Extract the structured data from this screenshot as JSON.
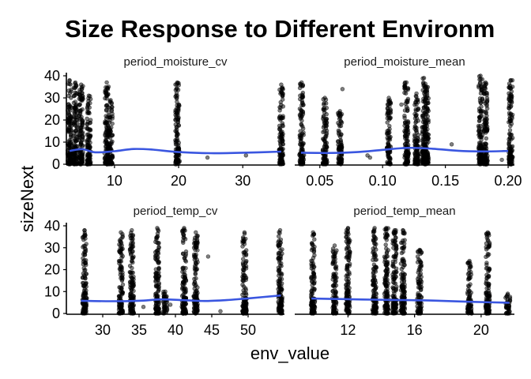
{
  "chart_data": {
    "type": "scatter",
    "title": "Size Response to Different Environm",
    "xlabel": "env_value",
    "ylabel": "sizeNext",
    "ylim": [
      0,
      40
    ],
    "yticks": [
      0,
      10,
      20,
      30,
      40
    ],
    "grid": false,
    "smooth_color": "#3355dd",
    "point_color": "#000000",
    "facets": [
      {
        "name": "period_moisture_cv",
        "xlim": [
          2.5,
          36.5
        ],
        "xticks": [
          10,
          20,
          30
        ],
        "columns": [
          {
            "x": 3.0,
            "ymin": 0,
            "ymax": 38
          },
          {
            "x": 3.9,
            "ymin": 0,
            "ymax": 37
          },
          {
            "x": 4.8,
            "ymin": 0,
            "ymax": 36
          },
          {
            "x": 6.0,
            "ymin": 0,
            "ymax": 31
          },
          {
            "x": 8.8,
            "ymin": 0,
            "ymax": 37
          },
          {
            "x": 9.4,
            "ymin": 0,
            "ymax": 29
          },
          {
            "x": 19.8,
            "ymin": 0,
            "ymax": 37
          },
          {
            "x": 36.0,
            "ymin": 0,
            "ymax": 36
          }
        ],
        "scatter": [
          {
            "x": 6.3,
            "y": 1
          },
          {
            "x": 24.5,
            "y": 3
          },
          {
            "x": 30.5,
            "y": 4
          }
        ],
        "smooth": {
          "x": [
            3.0,
            5.0,
            7.0,
            10.0,
            13.0,
            16.0,
            20.0,
            25.0,
            30.0,
            36.0
          ],
          "y": [
            6.0,
            6.8,
            5.4,
            5.9,
            6.9,
            6.6,
            5.5,
            5.0,
            5.2,
            5.7
          ]
        }
      },
      {
        "name": "period_moisture_mean",
        "xlim": [
          0.03,
          0.205
        ],
        "xticks": [
          0.05,
          0.1,
          0.15,
          0.2
        ],
        "columns": [
          {
            "x": 0.0355,
            "ymin": 0,
            "ymax": 37
          },
          {
            "x": 0.054,
            "ymin": 0,
            "ymax": 30
          },
          {
            "x": 0.066,
            "ymin": 0,
            "ymax": 24
          },
          {
            "x": 0.105,
            "ymin": 0,
            "ymax": 30
          },
          {
            "x": 0.119,
            "ymin": 0,
            "ymax": 37
          },
          {
            "x": 0.127,
            "ymin": 0,
            "ymax": 32
          },
          {
            "x": 0.133,
            "ymin": 0,
            "ymax": 39
          },
          {
            "x": 0.135,
            "ymin": 0,
            "ymax": 35
          },
          {
            "x": 0.178,
            "ymin": 0,
            "ymax": 40
          },
          {
            "x": 0.182,
            "ymin": 0,
            "ymax": 37
          },
          {
            "x": 0.202,
            "ymin": 0,
            "ymax": 38
          }
        ],
        "scatter": [
          {
            "x": 0.068,
            "y": 34
          },
          {
            "x": 0.088,
            "y": 4
          },
          {
            "x": 0.09,
            "y": 3
          },
          {
            "x": 0.115,
            "y": 27
          },
          {
            "x": 0.155,
            "y": 9
          },
          {
            "x": 0.195,
            "y": 2
          }
        ],
        "smooth": {
          "x": [
            0.035,
            0.06,
            0.08,
            0.1,
            0.12,
            0.14,
            0.16,
            0.18,
            0.2
          ],
          "y": [
            5.2,
            5.1,
            5.5,
            6.5,
            7.4,
            7.0,
            6.1,
            5.8,
            6.0
          ]
        }
      },
      {
        "name": "period_temp_cv",
        "xlim": [
          25.0,
          55.0
        ],
        "xticks": [
          30,
          35,
          40,
          45,
          50
        ],
        "columns": [
          {
            "x": 27.5,
            "ymin": 0,
            "ymax": 38
          },
          {
            "x": 32.5,
            "ymin": 0,
            "ymax": 37
          },
          {
            "x": 34.0,
            "ymin": 0,
            "ymax": 38
          },
          {
            "x": 37.5,
            "ymin": 0,
            "ymax": 39
          },
          {
            "x": 38.6,
            "ymin": 0,
            "ymax": 10
          },
          {
            "x": 41.2,
            "ymin": 0,
            "ymax": 39
          },
          {
            "x": 42.8,
            "ymin": 0,
            "ymax": 37
          },
          {
            "x": 49.5,
            "ymin": 0,
            "ymax": 37
          },
          {
            "x": 54.4,
            "ymin": 0,
            "ymax": 38
          }
        ],
        "scatter": [
          {
            "x": 35.6,
            "y": 3
          },
          {
            "x": 39.3,
            "y": 4
          },
          {
            "x": 44.5,
            "y": 26
          },
          {
            "x": 46.2,
            "y": 1
          }
        ],
        "smooth": {
          "x": [
            27.0,
            31.0,
            35.0,
            38.0,
            41.0,
            44.0,
            47.0,
            50.0,
            54.5
          ],
          "y": [
            5.8,
            5.6,
            5.8,
            6.4,
            6.1,
            5.7,
            6.1,
            6.9,
            8.2
          ]
        }
      },
      {
        "name": "period_temp_mean",
        "xlim": [
          8.8,
          22.0
        ],
        "xticks": [
          12,
          16,
          20
        ],
        "columns": [
          {
            "x": 9.9,
            "ymin": 0,
            "ymax": 37
          },
          {
            "x": 11.2,
            "ymin": 0,
            "ymax": 31
          },
          {
            "x": 12.0,
            "ymin": 0,
            "ymax": 39
          },
          {
            "x": 13.6,
            "ymin": 0,
            "ymax": 39
          },
          {
            "x": 14.3,
            "ymin": 0,
            "ymax": 39
          },
          {
            "x": 14.8,
            "ymin": 0,
            "ymax": 38
          },
          {
            "x": 15.3,
            "ymin": 0,
            "ymax": 38
          },
          {
            "x": 16.3,
            "ymin": 0,
            "ymax": 29
          },
          {
            "x": 19.3,
            "ymin": 0,
            "ymax": 24
          },
          {
            "x": 20.4,
            "ymin": 0,
            "ymax": 37
          },
          {
            "x": 21.6,
            "ymin": 0,
            "ymax": 9
          }
        ],
        "scatter": [
          {
            "x": 9.8,
            "y": 2
          },
          {
            "x": 21.5,
            "y": 3
          }
        ],
        "smooth": {
          "x": [
            9.8,
            11.5,
            13.5,
            15.5,
            17.5,
            19.5,
            21.7
          ],
          "y": [
            6.8,
            6.6,
            6.3,
            6.1,
            5.8,
            5.3,
            4.9
          ]
        }
      }
    ]
  }
}
